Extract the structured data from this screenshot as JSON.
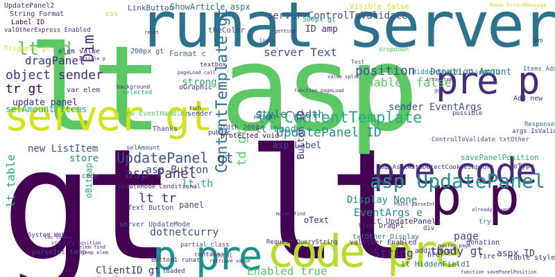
{
  "palette": {
    "purple": "#440154",
    "indigo": "#472c7a",
    "blue": "#3b518b",
    "teal": "#2c718e",
    "sea": "#21908d",
    "green": "#27ad81",
    "lime": "#5cc863",
    "yellow": "#b5de2b",
    "bright": "#d5e21a"
  },
  "words": [
    {
      "text": "gt lt",
      "color": "purple"
    },
    {
      "text": "lt asp",
      "color": "lime"
    },
    {
      "text": "runat server",
      "color": "teal"
    },
    {
      "text": "pre code",
      "color": "indigo"
    },
    {
      "text": "server gt",
      "color": "bright"
    },
    {
      "text": "p pre",
      "color": "sea"
    },
    {
      "text": "code pre",
      "color": "yellow"
    },
    {
      "text": "p p",
      "color": "purple"
    },
    {
      "text": "pre p",
      "color": "indigo"
    },
    {
      "text": "ContentTemplate gt",
      "color": "teal"
    },
    {
      "text": "asp UpdatePanel",
      "color": "sea"
    },
    {
      "text": "lt ContentTemplate",
      "color": "green"
    },
    {
      "text": "UpdatePanel gt",
      "color": "blue"
    },
    {
      "text": "UpdatePanel ID",
      "color": "sea"
    },
    {
      "text": "lt td",
      "color": "lime"
    },
    {
      "text": "style width",
      "color": "teal"
    },
    {
      "text": "asp Panel",
      "color": "indigo"
    },
    {
      "text": "server Text",
      "color": "blue"
    },
    {
      "text": "position",
      "color": "blue"
    },
    {
      "text": "Enabled false",
      "color": "lime"
    },
    {
      "text": "object sender",
      "color": "indigo"
    },
    {
      "text": "tr gt",
      "color": "purple"
    },
    {
      "text": "sender EventArgs",
      "color": "blue"
    },
    {
      "text": "Donation Amount",
      "color": "teal"
    },
    {
      "text": "dragPanel",
      "color": "indigo"
    },
    {
      "text": "lt tbody",
      "color": "sea"
    },
    {
      "text": "update panel",
      "color": "indigo"
    },
    {
      "text": "td gt",
      "color": "lime"
    },
    {
      "text": "Enabled true",
      "color": "lime"
    },
    {
      "text": "ClientID gt",
      "color": "indigo"
    },
    {
      "text": "lt table",
      "color": "green"
    },
    {
      "text": "lt tr",
      "color": "indigo"
    },
    {
      "text": "asp Button",
      "color": "blue"
    },
    {
      "text": "String",
      "color": "indigo"
    },
    {
      "text": "tbody gt",
      "color": "indigo"
    },
    {
      "text": "page",
      "color": "blue"
    },
    {
      "text": "EventArgs e",
      "color": "sea"
    },
    {
      "text": "Dim",
      "color": "indigo"
    },
    {
      "text": "aspx ID",
      "color": "indigo"
    },
    {
      "text": "dotnetcurry",
      "color": "blue"
    },
    {
      "text": "trying",
      "color": "indigo"
    },
    {
      "text": "asp Label",
      "color": "blue"
    },
    {
      "text": "Button ID",
      "color": "indigo"
    },
    {
      "text": "selAmount Items",
      "color": "green"
    },
    {
      "text": "ShowArticle aspx",
      "color": "teal"
    },
    {
      "text": "server ControlToValidate",
      "color": "blue"
    },
    {
      "text": "store",
      "color": "sea"
    },
    {
      "text": "new ListItem",
      "color": "blue"
    },
    {
      "text": "lt th",
      "color": "green"
    },
    {
      "text": "strong",
      "color": "green"
    },
    {
      "text": "Display None",
      "color": "sea"
    },
    {
      "text": "ID amp",
      "color": "indigo"
    },
    {
      "text": "UpdatePanel2",
      "color": "indigo"
    },
    {
      "text": "String Format",
      "color": "indigo"
    },
    {
      "text": "Label ID",
      "color": "purple"
    },
    {
      "text": "valOtherExpress Enabled",
      "color": "indigo"
    },
    {
      "text": "LinkButton",
      "color": "blue"
    },
    {
      "text": "500px gt",
      "color": "sea"
    },
    {
      "text": "panel",
      "color": "blue"
    },
    {
      "text": "oText",
      "color": "indigo"
    },
    {
      "text": "lt HiddenField1",
      "color": "teal"
    },
    {
      "text": "amp AspxAutoDetectCookieSupport",
      "color": "indigo"
    },
    {
      "text": "lt UpdatePanel1",
      "color": "indigo"
    },
    {
      "text": "Text Button",
      "color": "blue"
    },
    {
      "text": "200px gt",
      "color": "blue"
    },
    {
      "text": "elem value",
      "color": "indigo"
    },
    {
      "text": "var elem",
      "color": "indigo"
    },
    {
      "text": "Triggers gt",
      "color": "bright"
    },
    {
      "text": "theColor",
      "color": "blue"
    },
    {
      "text": "HiddenField1 ClientID",
      "color": "sea"
    },
    {
      "text": "Items Add",
      "color": "teal"
    },
    {
      "text": "new EventHandler",
      "color": "lime"
    },
    {
      "text": "oBitmap",
      "color": "green"
    },
    {
      "text": "Visible false",
      "color": "bright"
    },
    {
      "text": "savePanelPosition",
      "color": "green"
    },
    {
      "text": "server UpdateMode",
      "color": "blue"
    },
    {
      "text": "protected void",
      "color": "purple"
    },
    {
      "text": "width 200px",
      "color": "blue"
    },
    {
      "text": "ControlToValidate txtOther",
      "color": "blue"
    },
    {
      "text": "Request QueryString",
      "color": "indigo"
    },
    {
      "text": "txtOther Display",
      "color": "teal"
    },
    {
      "text": "val0ther Enabled",
      "color": "indigo"
    },
    {
      "text": "find DragP1",
      "color": "indigo"
    },
    {
      "text": "dropdown",
      "color": "lime"
    },
    {
      "text": "args IsValid",
      "color": "indigo"
    },
    {
      "text": "selected",
      "color": "green"
    },
    {
      "text": "contains",
      "color": "indigo"
    },
    {
      "text": "partial class",
      "color": "blue"
    },
    {
      "text": "loaded",
      "color": "indigo"
    },
    {
      "text": "parseInt temp",
      "color": "blue"
    },
    {
      "text": "System Web",
      "color": "indigo"
    },
    {
      "text": "Response",
      "color": "teal"
    },
    {
      "text": "table style",
      "color": "indigo"
    },
    {
      "text": "Height",
      "color": "blue"
    },
    {
      "text": "run",
      "color": "blue"
    },
    {
      "text": "Thanks",
      "color": "blue"
    },
    {
      "text": "public",
      "color": "indigo"
    },
    {
      "text": "textbox",
      "color": "indigo"
    },
    {
      "text": "Format c",
      "color": "teal"
    },
    {
      "text": "oGraphic",
      "color": "indigo"
    },
    {
      "text": "possible",
      "color": "indigo"
    },
    {
      "text": "additional",
      "color": "indigo"
    },
    {
      "text": "donation",
      "color": "indigo"
    },
    {
      "text": "fire",
      "color": "indigo"
    },
    {
      "text": "href",
      "color": "indigo"
    },
    {
      "text": "try",
      "color": "sea"
    },
    {
      "text": "div",
      "color": "indigo"
    },
    {
      "text": "css",
      "color": "yellow"
    },
    {
      "text": "oType",
      "color": "indigo"
    },
    {
      "text": "Add new",
      "color": "indigo"
    },
    {
      "text": "html",
      "color": "blue"
    },
    {
      "text": "sender",
      "color": "blue"
    },
    {
      "text": "code",
      "color": "blue"
    },
    {
      "text": "selAmount",
      "color": "blue"
    },
    {
      "text": "Button1 runat",
      "color": "indigo"
    },
    {
      "text": "UpdateMode Conditional",
      "color": "indigo"
    },
    {
      "text": "None ErrorMessage",
      "color": "bright"
    },
    {
      "text": "Test",
      "color": "blue"
    },
    {
      "text": "background",
      "color": "indigo"
    },
    {
      "text": "pageLoad call",
      "color": "indigo"
    },
    {
      "text": "article p",
      "color": "indigo"
    },
    {
      "text": "login",
      "color": "indigo"
    },
    {
      "text": "reset",
      "color": "indigo"
    },
    {
      "text": "value split",
      "color": "indigo"
    },
    {
      "text": "elem find",
      "color": "indigo"
    },
    {
      "text": "temp elem",
      "color": "indigo"
    },
    {
      "text": "Point parseInt",
      "color": "indigo"
    },
    {
      "text": "function pageLoad",
      "color": "indigo"
    },
    {
      "text": "master page",
      "color": "indigo"
    },
    {
      "text": "moved find",
      "color": "indigo"
    },
    {
      "text": "already found",
      "color": "indigo"
    },
    {
      "text": "retrieve value",
      "color": "indigo"
    },
    {
      "text": "Array temp",
      "color": "indigo"
    },
    {
      "text": "getting",
      "color": "indigo"
    },
    {
      "text": "DTD",
      "color": "indigo"
    },
    {
      "text": "got",
      "color": "indigo"
    },
    {
      "text": "starting position",
      "color": "indigo"
    },
    {
      "text": "loc common",
      "color": "indigo"
    },
    {
      "text": "function savePanelPosition",
      "color": "indigo"
    }
  ]
}
